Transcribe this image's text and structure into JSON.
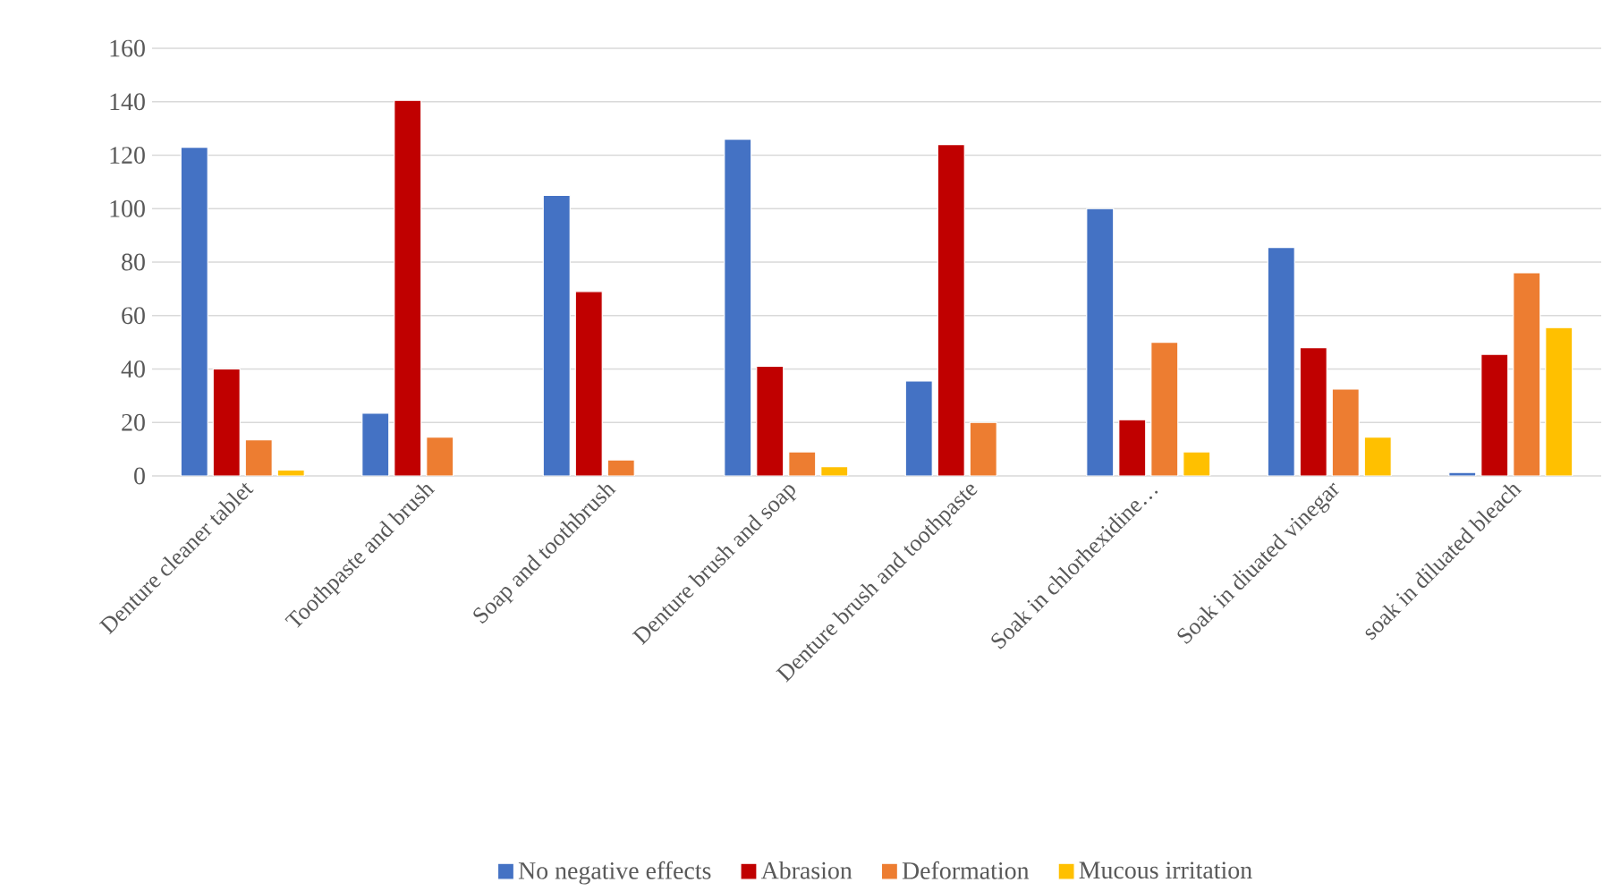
{
  "chart_data": {
    "type": "bar",
    "categories": [
      "Denture cleaner tablet",
      "Toothpaste and brush",
      "Soap and toothbrush",
      "Denture brush and soap",
      "Denture brush and toothpaste",
      "Soak in chlorhexidine…",
      "Soak in diuated vinegar",
      "soak in diluated bleach"
    ],
    "series": [
      {
        "name": "No negative effects",
        "color": "#4472c4",
        "values": [
          123,
          23.5,
          105,
          126,
          35.5,
          100,
          85.5,
          1.3
        ]
      },
      {
        "name": "Abrasion",
        "color": "#c00000",
        "values": [
          40,
          140.5,
          69,
          41,
          124,
          21,
          48,
          45.5
        ]
      },
      {
        "name": "Deformation",
        "color": "#ed7d31",
        "values": [
          13.5,
          14.5,
          6,
          9,
          20,
          50,
          32.5,
          76
        ]
      },
      {
        "name": "Mucous irritation",
        "color": "#ffc000",
        "values": [
          2.2,
          null,
          null,
          3.5,
          null,
          9,
          14.5,
          55.5
        ]
      }
    ],
    "ylim": [
      0,
      160
    ],
    "yticks": [
      0,
      20,
      40,
      60,
      80,
      100,
      120,
      140,
      160
    ],
    "grid": "y",
    "legend": "bottom"
  }
}
